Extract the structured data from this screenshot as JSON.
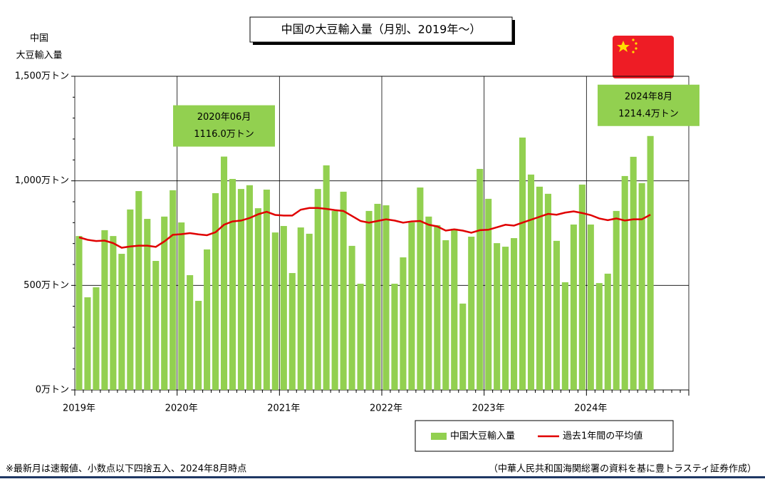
{
  "chart_data": {
    "type": "bar_line",
    "title": "中国の大豆輸入量（月別、2019年～）",
    "y_label": [
      "中国",
      "大豆輸入量"
    ],
    "categories": [
      "2019年",
      null,
      null,
      null,
      null,
      null,
      null,
      null,
      null,
      null,
      null,
      null,
      "2020年",
      null,
      null,
      null,
      null,
      null,
      null,
      null,
      null,
      null,
      null,
      null,
      "2021年",
      null,
      null,
      null,
      null,
      null,
      null,
      null,
      null,
      null,
      null,
      null,
      "2022年",
      null,
      null,
      null,
      null,
      null,
      null,
      null,
      null,
      null,
      null,
      null,
      "2023年",
      null,
      null,
      null,
      null,
      null,
      null,
      null,
      null,
      null,
      null,
      null,
      "2024年",
      null,
      null,
      null,
      null,
      null,
      null,
      null,
      null,
      null,
      null,
      null
    ],
    "series": [
      {
        "name": "中国大豆輸入量",
        "type": "bar",
        "color": "#92d050",
        "values": [
          736,
          443,
          491,
          764,
          736,
          651,
          863,
          951,
          818,
          617,
          829,
          955,
          801,
          549,
          426,
          672,
          941,
          1116.0,
          1009,
          961,
          979,
          869,
          958,
          753,
          784,
          559,
          777,
          747,
          961,
          1074,
          856,
          948,
          689,
          508,
          856,
          890,
          883,
          508,
          634,
          801,
          968,
          829,
          788,
          716,
          771,
          413,
          733,
          1057,
          914,
          702,
          685,
          726,
          1207,
          1030,
          972,
          938,
          713,
          515,
          791,
          982,
          791,
          511,
          556,
          856,
          1023,
          1115,
          989,
          1214.4,
          null,
          null,
          null,
          null
        ]
      },
      {
        "name": "過去1年間の平均値",
        "type": "line",
        "color": "#e00000",
        "values": [
          730,
          718,
          712,
          714,
          702,
          680,
          686,
          690,
          690,
          684,
          710,
          742,
          745,
          750,
          744,
          740,
          754,
          790,
          806,
          810,
          822,
          840,
          852,
          837,
          834,
          834,
          862,
          870,
          870,
          866,
          860,
          856,
          832,
          808,
          800,
          808,
          816,
          810,
          800,
          806,
          808,
          790,
          782,
          762,
          768,
          762,
          752,
          764,
          766,
          778,
          790,
          786,
          800,
          814,
          828,
          842,
          838,
          848,
          854,
          846,
          836,
          820,
          812,
          820,
          810,
          816,
          816,
          838,
          null,
          null,
          null,
          null
        ]
      }
    ],
    "ylim": [
      0,
      1500
    ],
    "yticks": [
      {
        "value": 0,
        "label": "0万トン"
      },
      {
        "value": 500,
        "label": "500万トン"
      },
      {
        "value": 1000,
        "label": "1,000万トン"
      },
      {
        "value": 1500,
        "label": "1,500万トン"
      }
    ],
    "yticks_minor": [
      100,
      200,
      300,
      400,
      600,
      700,
      800,
      900,
      1100,
      1200,
      1300,
      1400
    ],
    "grid": true,
    "annotations": [
      {
        "index": 17,
        "lines": [
          "2020年06月",
          "1116.0万トン"
        ]
      },
      {
        "index": 67,
        "lines": [
          "2024年8月",
          "1214.4万トン"
        ]
      }
    ],
    "note": "※最新月は速報値、小数点以下四捨五入、2024年8月時点",
    "source": "（中華人民共和国海関総署の資料を基に豊トラスティ証券作成）"
  }
}
